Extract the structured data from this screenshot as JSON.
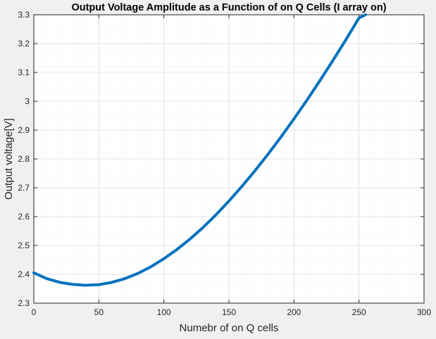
{
  "chart_data": {
    "type": "line",
    "title": "Output Voltage Amplitude as a Function of on Q Cells (I array on)",
    "xlabel": "Numebr of on Q cells",
    "ylabel": "Output voltage[V]",
    "xlim": [
      0,
      300
    ],
    "ylim": [
      2.3,
      3.3
    ],
    "xticks": [
      "0",
      "50",
      "100",
      "150",
      "200",
      "250",
      "300"
    ],
    "yticks": [
      "2.3",
      "2.4",
      "2.5",
      "2.6",
      "2.7",
      "2.8",
      "2.9",
      "3",
      "3.1",
      "3.2",
      "3.3"
    ],
    "grid": true,
    "minor_grid": true,
    "series": [
      {
        "color": "#0072bd",
        "x": [
          0,
          10,
          20,
          30,
          40,
          50,
          60,
          70,
          80,
          90,
          100,
          110,
          120,
          130,
          140,
          150,
          160,
          170,
          180,
          190,
          200,
          210,
          220,
          230,
          240,
          250,
          255
        ],
        "y": [
          2.405,
          2.385,
          2.372,
          2.365,
          2.362,
          2.364,
          2.372,
          2.385,
          2.403,
          2.426,
          2.454,
          2.486,
          2.522,
          2.562,
          2.606,
          2.654,
          2.705,
          2.759,
          2.816,
          2.876,
          2.939,
          3.004,
          3.072,
          3.142,
          3.214,
          3.289,
          3.3
        ]
      }
    ]
  }
}
